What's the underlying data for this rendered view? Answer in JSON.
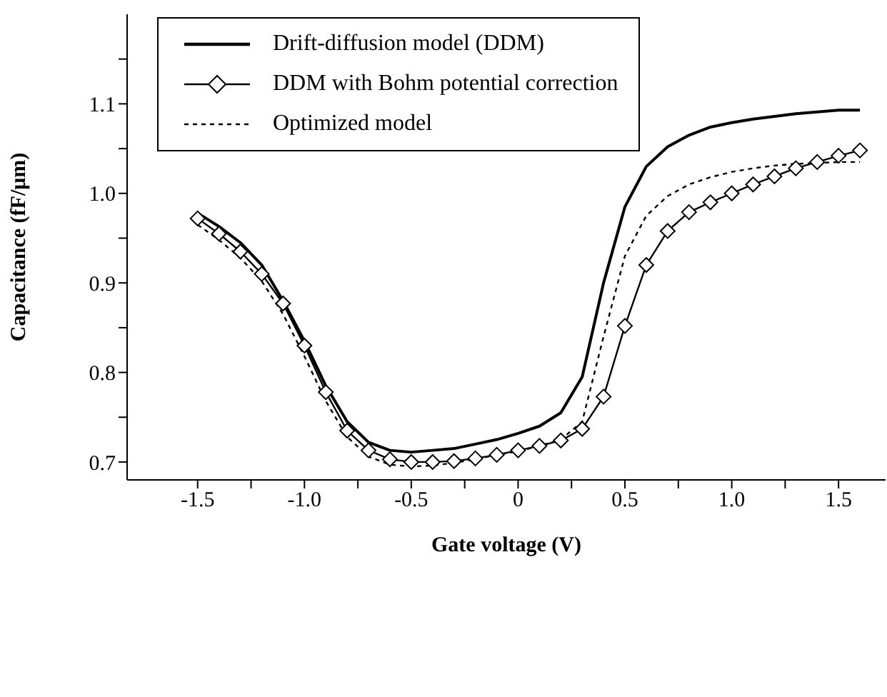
{
  "chart_data": {
    "type": "line",
    "xlabel": "Gate voltage (V)",
    "ylabel": "Capacitance (fF/μm)",
    "x": [
      -1.5,
      -1.4,
      -1.3,
      -1.2,
      -1.1,
      -1.0,
      -0.9,
      -0.8,
      -0.7,
      -0.6,
      -0.5,
      -0.4,
      -0.3,
      -0.2,
      -0.1,
      0,
      0.1,
      0.2,
      0.3,
      0.4,
      0.5,
      0.6,
      0.7,
      0.8,
      0.9,
      1.0,
      1.1,
      1.2,
      1.3,
      1.4,
      1.5,
      1.6
    ],
    "series": [
      {
        "name": "Drift-diffusion model (DDM)",
        "color": "#000000",
        "marker": "none",
        "line_style": "solid",
        "values": [
          0.978,
          0.963,
          0.945,
          0.92,
          0.88,
          0.835,
          0.785,
          0.745,
          0.722,
          0.713,
          0.711,
          0.713,
          0.715,
          0.72,
          0.725,
          0.732,
          0.74,
          0.755,
          0.795,
          0.9,
          0.985,
          1.03,
          1.052,
          1.065,
          1.074,
          1.079,
          1.083,
          1.086,
          1.089,
          1.091,
          1.093,
          1.093
        ]
      },
      {
        "name": "DDM with Bohm potential correction",
        "color": "#000000",
        "marker": "diamond",
        "line_style": "solid",
        "values": [
          0.972,
          0.955,
          0.935,
          0.91,
          0.877,
          0.83,
          0.778,
          0.735,
          0.713,
          0.703,
          0.7,
          0.7,
          0.701,
          0.704,
          0.708,
          0.713,
          0.718,
          0.724,
          0.737,
          0.773,
          0.852,
          0.92,
          0.958,
          0.979,
          0.99,
          1.0,
          1.01,
          1.019,
          1.028,
          1.035,
          1.042,
          1.048
        ]
      },
      {
        "name": "Optimized model",
        "color": "#000000",
        "marker": "none",
        "line_style": "dotted",
        "values": [
          0.965,
          0.948,
          0.928,
          0.902,
          0.865,
          0.818,
          0.768,
          0.728,
          0.706,
          0.697,
          0.695,
          0.696,
          0.699,
          0.703,
          0.708,
          0.712,
          0.718,
          0.725,
          0.745,
          0.84,
          0.93,
          0.975,
          0.997,
          1.01,
          1.018,
          1.024,
          1.028,
          1.031,
          1.033,
          1.034,
          1.035,
          1.035
        ]
      }
    ],
    "xlim": [
      -1.83,
      1.72
    ],
    "xticks": [
      -1.5,
      {
        "value": -1.25,
        "label": null
      },
      "-1.0",
      {
        "value": -0.75,
        "label": null
      },
      -0.5,
      {
        "value": -0.25,
        "label": null
      },
      0,
      {
        "value": 0.25,
        "label": null
      },
      0.5,
      {
        "value": 0.75,
        "label": null
      },
      {
        "value": 1.0,
        "label": "1.0"
      },
      {
        "value": 1.25,
        "label": null
      },
      1.5
    ],
    "ylim": [
      0.68,
      1.2
    ],
    "yticks": [
      0.7,
      {
        "value": 0.75,
        "label": null
      },
      0.8,
      {
        "value": 0.85,
        "label": null
      },
      0.9,
      {
        "value": 0.95,
        "label": null
      },
      {
        "value": 1.0,
        "label": "1.0"
      },
      {
        "value": 1.05,
        "label": null
      },
      1.1,
      {
        "value": 1.15,
        "label": null
      }
    ],
    "legend": "top left",
    "grid": false
  }
}
